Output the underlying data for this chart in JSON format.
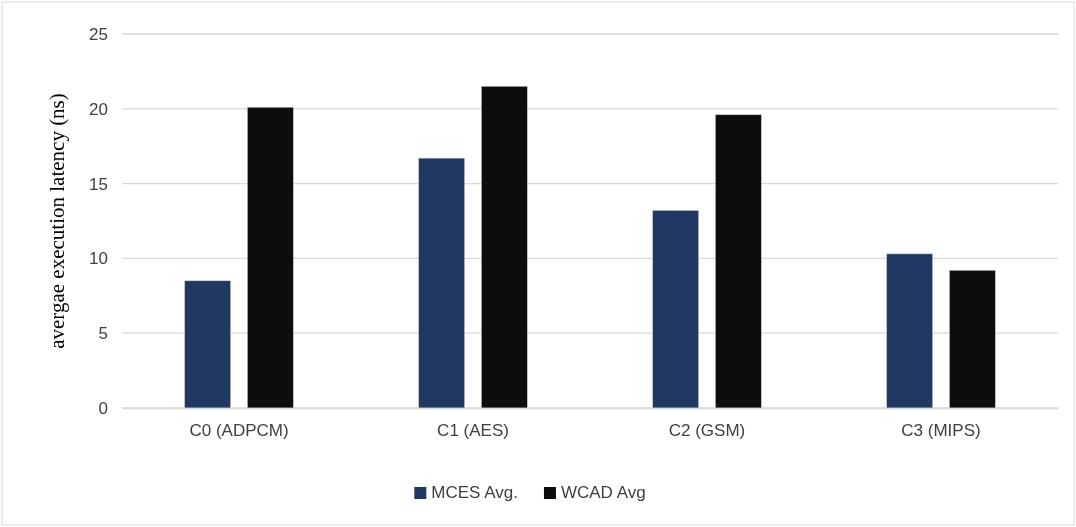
{
  "chart_data": {
    "type": "bar",
    "ylabel": "avergae execution latency (ns)",
    "categories": [
      "C0 (ADPCM)",
      "C1 (AES)",
      "C2 (GSM)",
      "C3 (MIPS)"
    ],
    "series": [
      {
        "name": "MCES Avg.",
        "color": "#203864",
        "values": [
          8.5,
          16.7,
          13.2,
          10.3
        ]
      },
      {
        "name": "WCAD Avg",
        "color": "#0d0d0d",
        "values": [
          20.1,
          21.5,
          19.6,
          9.2
        ]
      }
    ],
    "ylim": [
      0,
      25
    ],
    "yticks": [
      0,
      5,
      10,
      15,
      20,
      25
    ],
    "grid": "y",
    "legend": "bottom"
  }
}
